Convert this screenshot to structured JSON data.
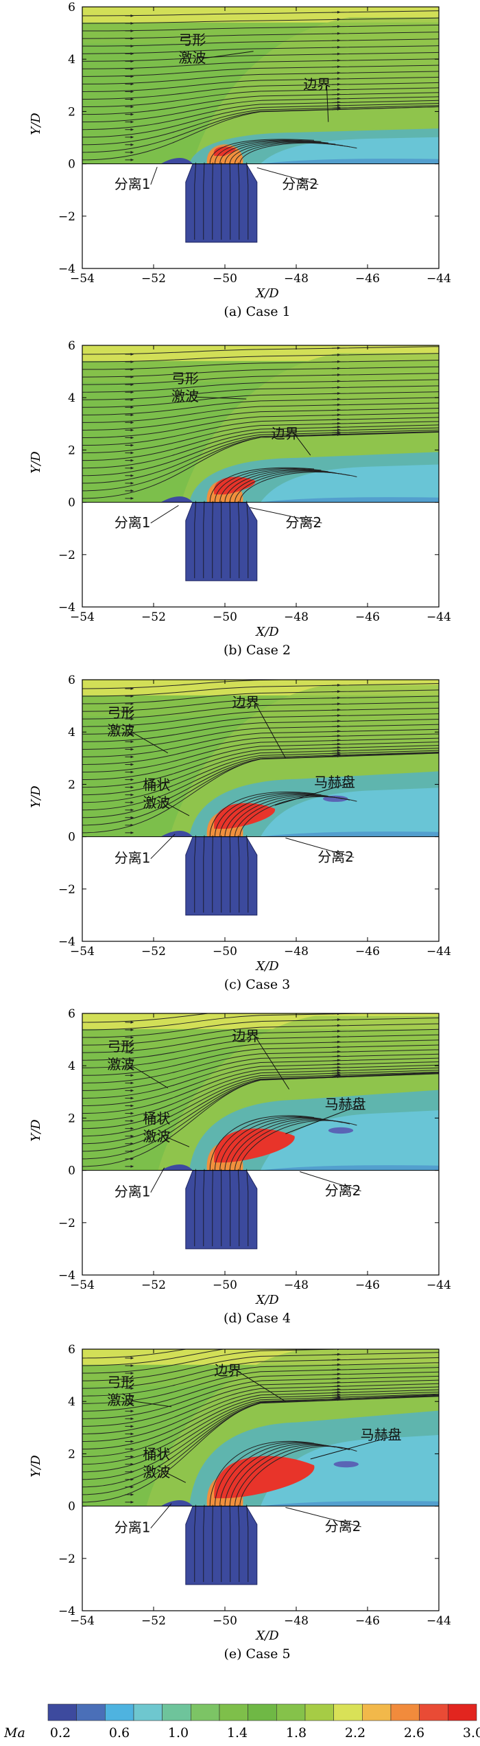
{
  "axes": {
    "xlabel": "X/D",
    "ylabel": "Y/D",
    "xlim": [
      -54,
      -44
    ],
    "ylim": [
      -4,
      6
    ],
    "xticks": [
      "−54",
      "−52",
      "−50",
      "−48",
      "−46",
      "−44"
    ],
    "yticks": [
      "−4",
      "−2",
      "0",
      "2",
      "4",
      "6"
    ]
  },
  "panels": [
    {
      "caption": "(a) Case 1",
      "case": 1,
      "labels": [
        {
          "id": "bow-shock",
          "text": [
            "弓形",
            "激波"
          ],
          "pt": [
            -51.3,
            4.55
          ],
          "target": [
            -49.2,
            4.3
          ]
        },
        {
          "id": "boundary",
          "text": [
            "边界"
          ],
          "pt": [
            -47.8,
            2.85
          ],
          "target": [
            -47.1,
            1.6
          ]
        },
        {
          "id": "sep1",
          "text": [
            "分离1"
          ],
          "pt": [
            -53.1,
            -0.95
          ],
          "target": [
            -51.9,
            -0.12
          ]
        },
        {
          "id": "sep2",
          "text": [
            "分离2"
          ],
          "pt": [
            -48.4,
            -0.95
          ],
          "target": [
            -49.1,
            -0.15
          ]
        }
      ]
    },
    {
      "caption": "(b) Case 2",
      "case": 2,
      "labels": [
        {
          "id": "bow-shock",
          "text": [
            "弓形",
            "激波"
          ],
          "pt": [
            -51.5,
            4.55
          ],
          "target": [
            -49.4,
            3.95
          ]
        },
        {
          "id": "boundary",
          "text": [
            "边界"
          ],
          "pt": [
            -48.7,
            2.45
          ],
          "target": [
            -47.6,
            1.8
          ]
        },
        {
          "id": "sep1",
          "text": [
            "分离1"
          ],
          "pt": [
            -53.1,
            -0.95
          ],
          "target": [
            -51.3,
            -0.12
          ]
        },
        {
          "id": "sep2",
          "text": [
            "分离2"
          ],
          "pt": [
            -48.3,
            -0.95
          ],
          "target": [
            -49.3,
            -0.2
          ]
        }
      ]
    },
    {
      "caption": "(c) Case 3",
      "case": 3,
      "labels": [
        {
          "id": "bow-shock",
          "text": [
            "弓形",
            "激波"
          ],
          "pt": [
            -53.3,
            4.55
          ],
          "target": [
            -51.6,
            3.2
          ]
        },
        {
          "id": "boundary",
          "text": [
            "边界"
          ],
          "pt": [
            -49.8,
            4.95
          ],
          "target": [
            -48.3,
            3.0
          ]
        },
        {
          "id": "barrel-shock",
          "text": [
            "桶状",
            "激波"
          ],
          "pt": [
            -52.3,
            1.8
          ],
          "target": [
            -51.0,
            0.8
          ]
        },
        {
          "id": "mach-disk",
          "text": [
            "马赫盘"
          ],
          "pt": [
            -47.5,
            1.9
          ],
          "target": [
            -48.6,
            1.2
          ]
        },
        {
          "id": "sep1",
          "text": [
            "分离1"
          ],
          "pt": [
            -53.1,
            -1.0
          ],
          "target": [
            -51.4,
            0.1
          ]
        },
        {
          "id": "sep2",
          "text": [
            "分离2"
          ],
          "pt": [
            -47.4,
            -0.95
          ],
          "target": [
            -48.3,
            -0.05
          ]
        }
      ]
    },
    {
      "caption": "(d) Case 4",
      "case": 4,
      "labels": [
        {
          "id": "bow-shock",
          "text": [
            "弓形",
            "激波"
          ],
          "pt": [
            -53.3,
            4.55
          ],
          "target": [
            -51.6,
            3.15
          ]
        },
        {
          "id": "boundary",
          "text": [
            "边界"
          ],
          "pt": [
            -49.8,
            4.95
          ],
          "target": [
            -48.2,
            3.1
          ]
        },
        {
          "id": "barrel-shock",
          "text": [
            "桶状",
            "激波"
          ],
          "pt": [
            -52.3,
            1.8
          ],
          "target": [
            -51.0,
            0.9
          ]
        },
        {
          "id": "mach-disk",
          "text": [
            "马赫盘"
          ],
          "pt": [
            -47.2,
            2.35
          ],
          "target": [
            -48.3,
            1.4
          ]
        },
        {
          "id": "sep1",
          "text": [
            "分离1"
          ],
          "pt": [
            -53.1,
            -1.0
          ],
          "target": [
            -51.7,
            0.1
          ]
        },
        {
          "id": "sep2",
          "text": [
            "分离2"
          ],
          "pt": [
            -47.2,
            -0.95
          ],
          "target": [
            -47.9,
            -0.05
          ]
        }
      ]
    },
    {
      "caption": "(e) Case 5",
      "case": 5,
      "labels": [
        {
          "id": "bow-shock",
          "text": [
            "弓形",
            "激波"
          ],
          "pt": [
            -53.3,
            4.55
          ],
          "target": [
            -51.5,
            3.8
          ]
        },
        {
          "id": "boundary",
          "text": [
            "边界"
          ],
          "pt": [
            -50.3,
            5.0
          ],
          "target": [
            -48.3,
            4.0
          ]
        },
        {
          "id": "barrel-shock",
          "text": [
            "桶状",
            "激波"
          ],
          "pt": [
            -52.3,
            1.8
          ],
          "target": [
            -51.1,
            0.9
          ]
        },
        {
          "id": "mach-disk",
          "text": [
            "马赫盘"
          ],
          "pt": [
            -46.2,
            2.55
          ],
          "target": [
            -47.6,
            1.8
          ]
        },
        {
          "id": "sep1",
          "text": [
            "分离1"
          ],
          "pt": [
            -53.1,
            -1.0
          ],
          "target": [
            -51.5,
            0.1
          ]
        },
        {
          "id": "sep2",
          "text": [
            "分离2"
          ],
          "pt": [
            -47.2,
            -0.95
          ],
          "target": [
            -48.3,
            -0.05
          ]
        }
      ]
    }
  ],
  "colorbar": {
    "label": "Ma",
    "ticks": [
      "0.2",
      "0.6",
      "1.0",
      "1.4",
      "1.8",
      "2.2",
      "2.6",
      "3.0"
    ],
    "colors": [
      "#3d4a9e",
      "#4a6fb8",
      "#4eb3e0",
      "#6ec7cf",
      "#6ec49b",
      "#7cc465",
      "#7ebf4a",
      "#6fb845",
      "#85c24a",
      "#a6cc45",
      "#d9e157",
      "#f2b84a",
      "#f18b3c",
      "#e94b35",
      "#e2251f"
    ]
  },
  "colors": {
    "top-band": "#d2df57",
    "freestream": "#7cbf4b",
    "plume": "#5fb5ae",
    "wake": "#69c5d6",
    "jet-core": "#e8342a",
    "nozzle": "#3c4a9d",
    "expansion": "#6b62b0",
    "streamline": "#222222"
  }
}
